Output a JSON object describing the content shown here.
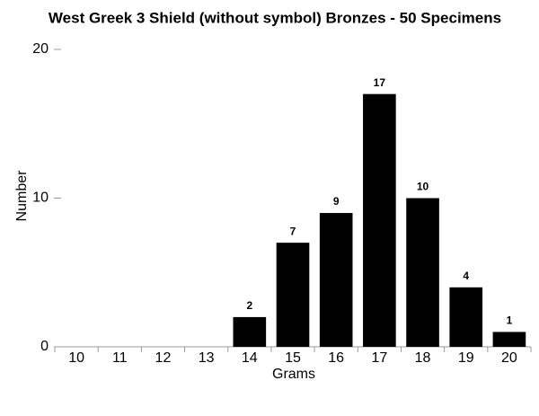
{
  "chart_data": {
    "type": "bar",
    "title": "West Greek 3 Shield (without symbol) Bronzes  - 50 Specimens",
    "x_label": "Grams",
    "y_label": "Number",
    "categories": [
      "10",
      "11",
      "12",
      "13",
      "14",
      "15",
      "16",
      "17",
      "18",
      "19",
      "20"
    ],
    "values": [
      0,
      0,
      0,
      0,
      2,
      7,
      9,
      17,
      10,
      4,
      1
    ],
    "color": "#000000",
    "ylim": [
      0,
      20
    ],
    "yticks": [
      0,
      10,
      20
    ],
    "grid": false
  }
}
